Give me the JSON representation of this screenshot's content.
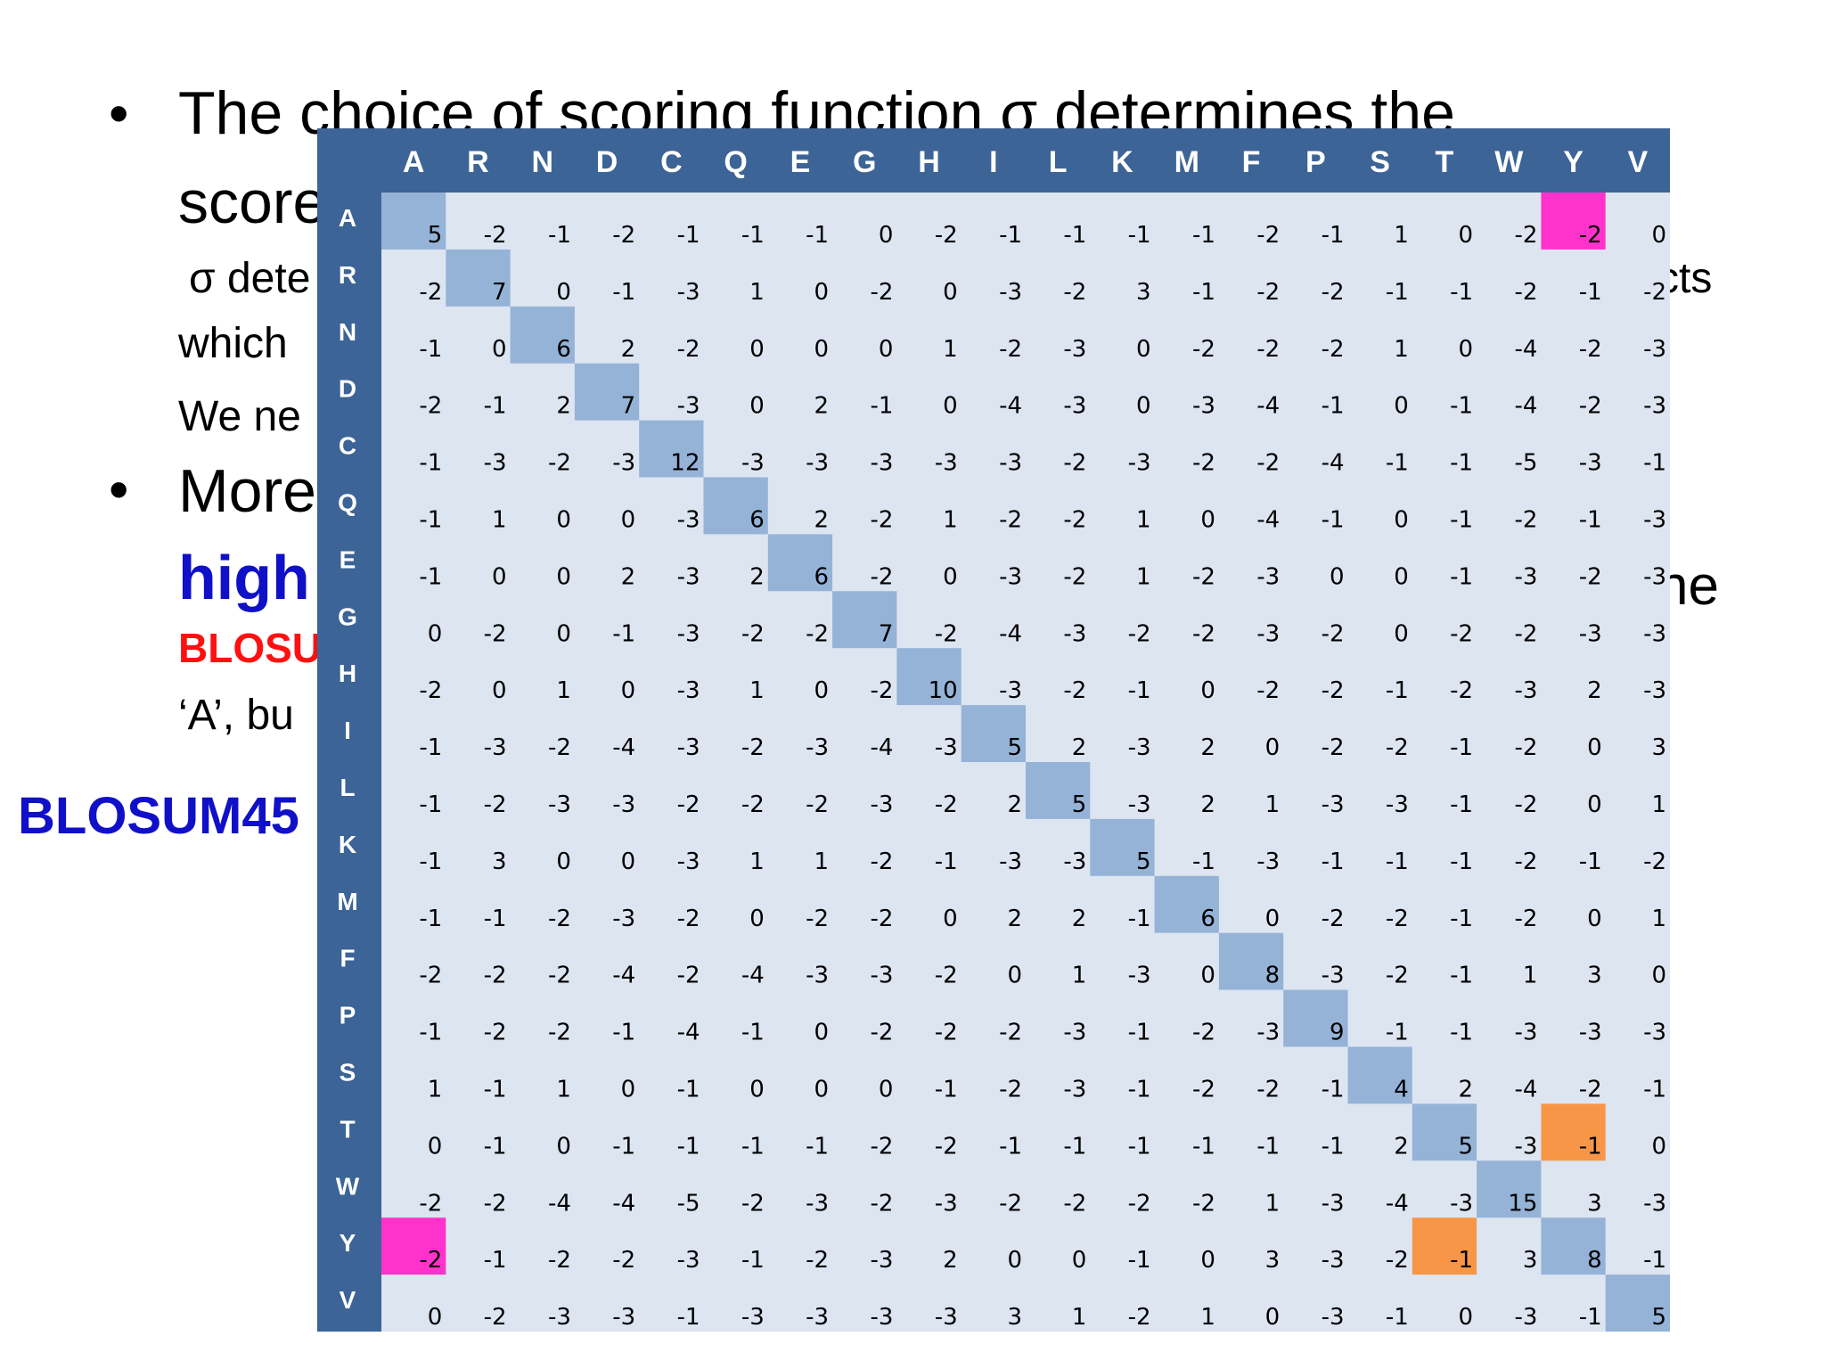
{
  "slide": {
    "bullet_glyph": "•",
    "line1": "The choice of scoring function σ determines the",
    "line1b": "score",
    "sub1": "σ dete",
    "sub2": "which",
    "sub3": "We ne",
    "line2": "More",
    "highlight": "high",
    "red_text": "BLOSU",
    "sub4": "‘A’, bu",
    "right1": "cts",
    "right2": "ne",
    "side_label": "BLOSUM45"
  },
  "matrix": {
    "letters": [
      "A",
      "R",
      "N",
      "D",
      "C",
      "Q",
      "E",
      "G",
      "H",
      "I",
      "L",
      "K",
      "M",
      "F",
      "P",
      "S",
      "T",
      "W",
      "Y",
      "V"
    ],
    "values": [
      [
        5,
        -2,
        -1,
        -2,
        -1,
        -1,
        -1,
        0,
        -2,
        -1,
        -1,
        -1,
        -1,
        -2,
        -1,
        1,
        0,
        -2,
        -2,
        0
      ],
      [
        -2,
        7,
        0,
        -1,
        -3,
        1,
        0,
        -2,
        0,
        -3,
        -2,
        3,
        -1,
        -2,
        -2,
        -1,
        -1,
        -2,
        -1,
        -2
      ],
      [
        -1,
        0,
        6,
        2,
        -2,
        0,
        0,
        0,
        1,
        -2,
        -3,
        0,
        -2,
        -2,
        -2,
        1,
        0,
        -4,
        -2,
        -3
      ],
      [
        -2,
        -1,
        2,
        7,
        -3,
        0,
        2,
        -1,
        0,
        -4,
        -3,
        0,
        -3,
        -4,
        -1,
        0,
        -1,
        -4,
        -2,
        -3
      ],
      [
        -1,
        -3,
        -2,
        -3,
        12,
        -3,
        -3,
        -3,
        -3,
        -3,
        -2,
        -3,
        -2,
        -2,
        -4,
        -1,
        -1,
        -5,
        -3,
        -1
      ],
      [
        -1,
        1,
        0,
        0,
        -3,
        6,
        2,
        -2,
        1,
        -2,
        -2,
        1,
        0,
        -4,
        -1,
        0,
        -1,
        -2,
        -1,
        -3
      ],
      [
        -1,
        0,
        0,
        2,
        -3,
        2,
        6,
        -2,
        0,
        -3,
        -2,
        1,
        -2,
        -3,
        0,
        0,
        -1,
        -3,
        -2,
        -3
      ],
      [
        0,
        -2,
        0,
        -1,
        -3,
        -2,
        -2,
        7,
        -2,
        -4,
        -3,
        -2,
        -2,
        -3,
        -2,
        0,
        -2,
        -2,
        -3,
        -3
      ],
      [
        -2,
        0,
        1,
        0,
        -3,
        1,
        0,
        -2,
        10,
        -3,
        -2,
        -1,
        0,
        -2,
        -2,
        -1,
        -2,
        -3,
        2,
        -3
      ],
      [
        -1,
        -3,
        -2,
        -4,
        -3,
        -2,
        -3,
        -4,
        -3,
        5,
        2,
        -3,
        2,
        0,
        -2,
        -2,
        -1,
        -2,
        0,
        3
      ],
      [
        -1,
        -2,
        -3,
        -3,
        -2,
        -2,
        -2,
        -3,
        -2,
        2,
        5,
        -3,
        2,
        1,
        -3,
        -3,
        -1,
        -2,
        0,
        1
      ],
      [
        -1,
        3,
        0,
        0,
        -3,
        1,
        1,
        -2,
        -1,
        -3,
        -3,
        5,
        -1,
        -3,
        -1,
        -1,
        -1,
        -2,
        -1,
        -2
      ],
      [
        -1,
        -1,
        -2,
        -3,
        -2,
        0,
        -2,
        -2,
        0,
        2,
        2,
        -1,
        6,
        0,
        -2,
        -2,
        -1,
        -2,
        0,
        1
      ],
      [
        -2,
        -2,
        -2,
        -4,
        -2,
        -4,
        -3,
        -3,
        -2,
        0,
        1,
        -3,
        0,
        8,
        -3,
        -2,
        -1,
        1,
        3,
        0
      ],
      [
        -1,
        -2,
        -2,
        -1,
        -4,
        -1,
        0,
        -2,
        -2,
        -2,
        -3,
        -1,
        -2,
        -3,
        9,
        -1,
        -1,
        -3,
        -3,
        -3
      ],
      [
        1,
        -1,
        1,
        0,
        -1,
        0,
        0,
        0,
        -1,
        -2,
        -3,
        -1,
        -2,
        -2,
        -1,
        4,
        2,
        -4,
        -2,
        -1
      ],
      [
        0,
        -1,
        0,
        -1,
        -1,
        -1,
        -1,
        -2,
        -2,
        -1,
        -1,
        -1,
        -1,
        -1,
        -1,
        2,
        5,
        -3,
        -1,
        0
      ],
      [
        -2,
        -2,
        -4,
        -4,
        -5,
        -2,
        -3,
        -2,
        -3,
        -2,
        -2,
        -2,
        -2,
        1,
        -3,
        -4,
        -3,
        15,
        3,
        -3
      ],
      [
        -2,
        -1,
        -2,
        -2,
        -3,
        -1,
        -2,
        -3,
        2,
        0,
        0,
        -1,
        0,
        3,
        -3,
        -2,
        -1,
        3,
        8,
        -1
      ],
      [
        0,
        -2,
        -3,
        -3,
        -1,
        -3,
        -3,
        -3,
        -3,
        3,
        1,
        -2,
        1,
        0,
        -3,
        -1,
        0,
        -3,
        -1,
        5
      ]
    ],
    "highlights": [
      {
        "row": 0,
        "col": 18,
        "color": "#ff33cc"
      },
      {
        "row": 18,
        "col": 0,
        "color": "#ff33cc"
      },
      {
        "row": 16,
        "col": 18,
        "color": "#f79646"
      },
      {
        "row": 18,
        "col": 16,
        "color": "#f79646"
      }
    ],
    "colors": {
      "header_bg": "#3c6496",
      "header_text": "#ffffff",
      "cell_bg": "#dde5f1",
      "diag_bg": "#95b3d7",
      "text": "#000000"
    }
  }
}
